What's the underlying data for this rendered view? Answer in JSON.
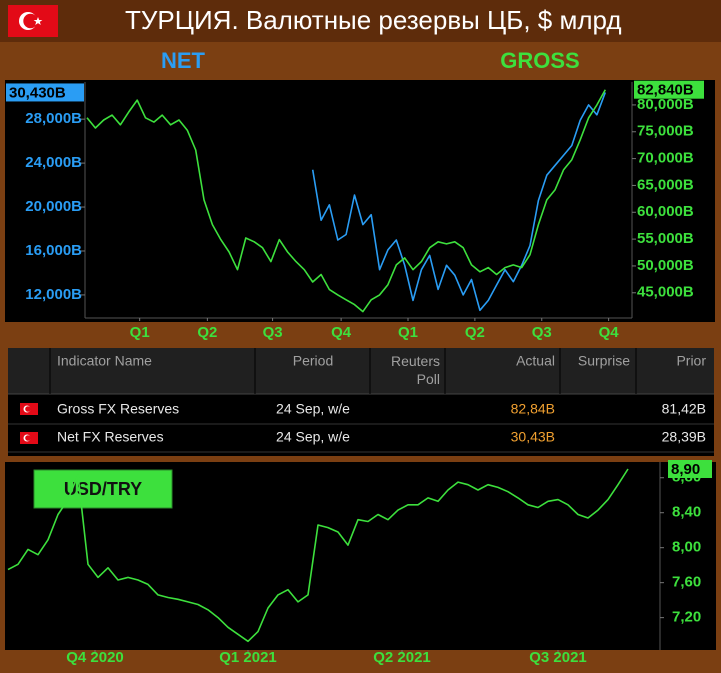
{
  "header": {
    "title": "ТУРЦИЯ. Валютные резервы ЦБ, $ млрд"
  },
  "chart_data": [
    {
      "type": "line",
      "xlim": [
        0,
        64
      ],
      "xticks": [
        {
          "value": 6.3,
          "label": "Q1"
        },
        {
          "value": 14.4,
          "label": "Q2"
        },
        {
          "value": 22.2,
          "label": "Q3"
        },
        {
          "value": 30.4,
          "label": "Q4"
        },
        {
          "value": 38.4,
          "label": "Q1"
        },
        {
          "value": 46.4,
          "label": "Q2"
        },
        {
          "value": 54.4,
          "label": "Q3"
        },
        {
          "value": 62.4,
          "label": "Q4"
        }
      ],
      "ylim": [
        9900,
        31200
      ],
      "yticks": [
        {
          "value": 12000,
          "label": "12,000B"
        },
        {
          "value": 16000,
          "label": "16,000B"
        },
        {
          "value": 20000,
          "label": "20,000B"
        },
        {
          "value": 24000,
          "label": "24,000B"
        },
        {
          "value": 28000,
          "label": "28,000B"
        }
      ],
      "y2lim": [
        40300,
        83900
      ],
      "y2ticks": [
        {
          "value": 45000,
          "label": "45,000B"
        },
        {
          "value": 50000,
          "label": "50,000B"
        },
        {
          "value": 55000,
          "label": "55,000B"
        },
        {
          "value": 60000,
          "label": "60,000B"
        },
        {
          "value": 65000,
          "label": "65,000B"
        },
        {
          "value": 70000,
          "label": "70,000B"
        },
        {
          "value": 75000,
          "label": "75,000B"
        },
        {
          "value": 80000,
          "label": "80,000B"
        }
      ],
      "series": [
        {
          "name": "NET",
          "color": "#2a9df4",
          "axis": "y",
          "values": [
            null,
            null,
            null,
            null,
            null,
            null,
            null,
            null,
            null,
            null,
            null,
            null,
            null,
            null,
            null,
            null,
            null,
            null,
            null,
            null,
            null,
            null,
            null,
            null,
            null,
            null,
            null,
            23400,
            18800,
            20200,
            17000,
            17500,
            21100,
            18400,
            19300,
            14300,
            16100,
            17000,
            14700,
            11500,
            14300,
            15600,
            12500,
            14700,
            13800,
            12000,
            13400,
            10600,
            11500,
            12900,
            14300,
            13200,
            14700,
            16500,
            20600,
            22900,
            23800,
            24700,
            25600,
            27900,
            29300,
            28400,
            30430
          ],
          "value_labels": [
            null,
            null,
            null,
            null,
            null,
            null,
            null,
            null,
            null,
            null,
            null,
            null,
            null,
            null,
            null,
            null,
            null,
            null,
            null,
            null,
            null,
            null,
            null,
            null,
            null,
            null,
            null,
            null,
            null,
            null,
            null,
            null,
            null,
            null,
            null,
            null,
            null,
            null,
            null,
            null,
            null,
            null,
            null,
            null,
            null,
            null,
            null,
            null,
            null,
            null,
            null,
            null,
            null,
            null,
            null,
            null,
            null,
            null,
            null,
            null,
            null,
            null,
            "30,430B"
          ]
        },
        {
          "name": "GROSS",
          "color": "#3de03d",
          "axis": "y2",
          "values": [
            77600,
            75700,
            77200,
            78100,
            76300,
            78700,
            80900,
            77600,
            76800,
            78100,
            76300,
            77200,
            75300,
            71600,
            62300,
            57700,
            54900,
            52600,
            49300,
            55200,
            54500,
            53400,
            50800,
            54900,
            52600,
            50800,
            49300,
            47000,
            48400,
            45600,
            44600,
            43700,
            42800,
            41500,
            43700,
            44600,
            46500,
            50200,
            51500,
            49300,
            50800,
            53400,
            54500,
            54100,
            54500,
            53400,
            50200,
            48900,
            49700,
            48400,
            49700,
            50200,
            49700,
            52100,
            57700,
            62300,
            64200,
            67900,
            69800,
            73500,
            77600,
            80000,
            82840
          ],
          "value_labels": [
            null,
            null,
            null,
            null,
            null,
            null,
            null,
            null,
            null,
            null,
            null,
            null,
            null,
            null,
            null,
            null,
            null,
            null,
            null,
            null,
            null,
            null,
            null,
            null,
            null,
            null,
            null,
            null,
            null,
            null,
            null,
            null,
            null,
            null,
            null,
            null,
            null,
            null,
            null,
            null,
            null,
            null,
            null,
            null,
            null,
            null,
            null,
            null,
            null,
            null,
            null,
            null,
            null,
            null,
            null,
            null,
            null,
            null,
            null,
            null,
            null,
            null,
            "82,840B"
          ]
        }
      ]
    },
    {
      "type": "line",
      "title": "USD/TRY",
      "xlim": [
        0,
        65
      ],
      "xticks": [
        {
          "value": 8.7,
          "label": "Q4 2020"
        },
        {
          "value": 24,
          "label": "Q1 2021"
        },
        {
          "value": 39.4,
          "label": "Q2 2021"
        },
        {
          "value": 55,
          "label": "Q3 2021"
        }
      ],
      "ylim": [
        6.83,
        8.98
      ],
      "yticks": [
        {
          "value": 7.2,
          "label": "7,20"
        },
        {
          "value": 7.6,
          "label": "7,60"
        },
        {
          "value": 8,
          "label": "8,00"
        },
        {
          "value": 8.4,
          "label": "8,40"
        },
        {
          "value": 8.8,
          "label": "8,80"
        }
      ],
      "series": [
        {
          "color": "#3de03d",
          "axis": "y",
          "values": [
            7.75,
            7.81,
            7.98,
            7.92,
            8.09,
            8.38,
            8.55,
            8.83,
            7.81,
            7.66,
            7.77,
            7.63,
            7.66,
            7.63,
            7.58,
            7.46,
            7.43,
            7.41,
            7.38,
            7.35,
            7.29,
            7.2,
            7.09,
            7.01,
            6.93,
            7.04,
            7.31,
            7.46,
            7.52,
            7.38,
            7.46,
            8.26,
            8.23,
            8.18,
            8.03,
            8.32,
            8.3,
            8.38,
            8.32,
            8.43,
            8.49,
            8.49,
            8.57,
            8.53,
            8.66,
            8.75,
            8.72,
            8.66,
            8.72,
            8.69,
            8.64,
            8.57,
            8.49,
            8.46,
            8.53,
            8.55,
            8.49,
            8.38,
            8.34,
            8.43,
            8.55,
            8.72,
            8.9
          ],
          "value_labels": [
            null,
            null,
            null,
            null,
            null,
            null,
            null,
            null,
            null,
            null,
            null,
            null,
            null,
            null,
            null,
            null,
            null,
            null,
            null,
            null,
            null,
            null,
            null,
            null,
            null,
            null,
            null,
            null,
            null,
            null,
            null,
            null,
            null,
            null,
            null,
            null,
            null,
            null,
            null,
            null,
            null,
            null,
            null,
            null,
            null,
            null,
            null,
            null,
            null,
            null,
            null,
            null,
            null,
            null,
            null,
            null,
            null,
            null,
            null,
            null,
            null,
            null,
            "8,90"
          ]
        }
      ]
    }
  ],
  "table": {
    "columns": [
      "Indicator Name",
      "Period",
      "Reuters Poll",
      "Actual",
      "Surprise",
      "Prior"
    ],
    "rows": [
      [
        "Gross FX Reserves",
        "24 Sep, w/e",
        null,
        "82,84B",
        null,
        "81,42B"
      ],
      [
        "Net FX Reserves",
        "24 Sep, w/e",
        null,
        "30,43B",
        null,
        "28,39B"
      ]
    ]
  }
}
